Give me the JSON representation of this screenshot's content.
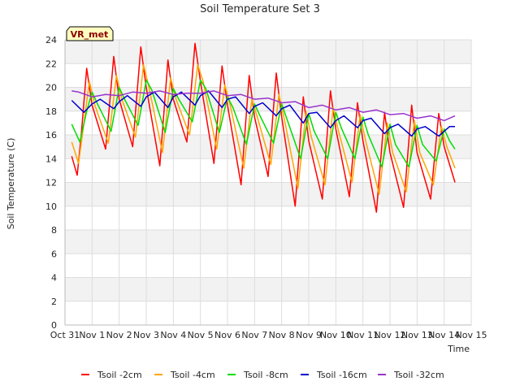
{
  "chart_data": {
    "type": "line",
    "title": "Soil Temperature Set 3",
    "xlabel": "Time",
    "ylabel": "Soil Temperature (C)",
    "xlim": [
      0,
      15
    ],
    "ylim": [
      0,
      24
    ],
    "x_tick_labels": [
      "Oct 31",
      "Nov 1",
      "Nov 2",
      "Nov 3",
      "Nov 4",
      "Nov 5",
      "Nov 6",
      "Nov 7",
      "Nov 8",
      "Nov 9",
      "Nov 10",
      "Nov 11",
      "Nov 12",
      "Nov 13",
      "Nov 14",
      "Nov 15"
    ],
    "y_ticks": [
      0,
      2,
      4,
      6,
      8,
      10,
      12,
      14,
      16,
      18,
      20,
      22,
      24
    ],
    "badge": "VR_met",
    "grid": true,
    "legend_position": "bottom",
    "series": [
      {
        "name": "Tsoil -2cm",
        "color": "#ff0000",
        "x": [
          0.25,
          0.45,
          0.6,
          0.8,
          1.0,
          1.5,
          1.8,
          2.0,
          2.5,
          2.8,
          3.0,
          3.5,
          3.8,
          4.0,
          4.5,
          4.8,
          5.0,
          5.5,
          5.8,
          6.0,
          6.5,
          6.8,
          7.0,
          7.5,
          7.8,
          8.0,
          8.5,
          8.8,
          9.0,
          9.5,
          9.8,
          10.0,
          10.5,
          10.8,
          11.0,
          11.5,
          11.8,
          12.0,
          12.5,
          12.8,
          13.0,
          13.5,
          13.8,
          14.0,
          14.4
        ],
        "y": [
          14.2,
          12.6,
          16.0,
          21.6,
          18.5,
          14.8,
          22.6,
          19.0,
          15.0,
          23.4,
          20.0,
          13.4,
          22.3,
          19.0,
          15.4,
          23.7,
          20.5,
          13.6,
          21.8,
          18.5,
          11.8,
          21.0,
          17.5,
          12.5,
          21.2,
          17.5,
          10.0,
          19.2,
          15.5,
          10.6,
          19.7,
          16.5,
          10.8,
          18.7,
          15.5,
          9.5,
          17.9,
          14.5,
          9.9,
          18.5,
          14.5,
          10.6,
          17.8,
          15.0,
          12.0
        ]
      },
      {
        "name": "Tsoil -4cm",
        "color": "#ffa500",
        "x": [
          0.25,
          0.5,
          0.7,
          0.9,
          1.1,
          1.6,
          1.9,
          2.1,
          2.6,
          2.9,
          3.1,
          3.6,
          3.9,
          4.1,
          4.6,
          4.9,
          5.1,
          5.6,
          5.9,
          6.1,
          6.6,
          6.9,
          7.1,
          7.6,
          7.9,
          8.1,
          8.6,
          8.9,
          9.1,
          9.6,
          9.9,
          10.1,
          10.6,
          10.9,
          11.1,
          11.6,
          11.9,
          12.1,
          12.6,
          12.9,
          13.1,
          13.6,
          13.9,
          14.1,
          14.4
        ],
        "y": [
          15.4,
          13.6,
          17.0,
          20.5,
          18.5,
          15.3,
          21.0,
          19.0,
          15.8,
          21.9,
          20.0,
          14.5,
          20.8,
          19.0,
          16.0,
          21.9,
          20.5,
          14.8,
          20.2,
          18.5,
          13.2,
          19.0,
          17.5,
          13.5,
          19.4,
          17.3,
          11.5,
          18.0,
          15.8,
          11.8,
          18.3,
          16.3,
          12.0,
          17.7,
          15.5,
          11.0,
          17.0,
          14.5,
          11.2,
          17.2,
          14.5,
          11.8,
          16.7,
          15.0,
          13.2
        ]
      },
      {
        "name": "Tsoil -8cm",
        "color": "#00dd00",
        "x": [
          0.25,
          0.55,
          0.8,
          1.0,
          1.2,
          1.7,
          2.0,
          2.2,
          2.7,
          3.0,
          3.2,
          3.7,
          4.0,
          4.2,
          4.7,
          5.0,
          5.2,
          5.7,
          6.0,
          6.2,
          6.7,
          7.0,
          7.2,
          7.7,
          8.0,
          8.2,
          8.7,
          9.0,
          9.2,
          9.7,
          10.0,
          10.2,
          10.7,
          11.0,
          11.2,
          11.7,
          12.0,
          12.2,
          12.7,
          13.0,
          13.2,
          13.7,
          14.0,
          14.2,
          14.4
        ],
        "y": [
          16.9,
          15.4,
          18.0,
          19.6,
          18.6,
          16.3,
          20.0,
          19.0,
          16.8,
          20.6,
          19.8,
          16.2,
          19.9,
          19.0,
          17.1,
          20.6,
          19.9,
          16.2,
          19.2,
          18.3,
          15.2,
          18.6,
          17.6,
          15.3,
          18.6,
          17.3,
          14.0,
          17.8,
          16.3,
          14.0,
          17.9,
          16.6,
          14.0,
          17.5,
          16.0,
          13.3,
          16.9,
          15.2,
          13.3,
          16.8,
          15.2,
          13.8,
          16.5,
          15.5,
          14.8
        ]
      },
      {
        "name": "Tsoil -16cm",
        "color": "#0000cc",
        "x": [
          0.25,
          0.7,
          1.0,
          1.3,
          1.8,
          2.0,
          2.3,
          2.8,
          3.0,
          3.3,
          3.8,
          4.0,
          4.3,
          4.8,
          5.0,
          5.3,
          5.8,
          6.0,
          6.3,
          6.8,
          7.0,
          7.3,
          7.8,
          8.0,
          8.3,
          8.8,
          9.0,
          9.3,
          9.8,
          10.0,
          10.3,
          10.8,
          11.0,
          11.3,
          11.8,
          12.0,
          12.3,
          12.8,
          13.0,
          13.3,
          13.8,
          14.0,
          14.2,
          14.4
        ],
        "y": [
          18.9,
          17.9,
          18.6,
          19.0,
          18.2,
          18.8,
          19.3,
          18.4,
          19.2,
          19.6,
          18.3,
          19.2,
          19.6,
          18.5,
          19.3,
          19.7,
          18.3,
          19.0,
          19.2,
          17.8,
          18.4,
          18.7,
          17.6,
          18.2,
          18.5,
          17.0,
          17.8,
          17.9,
          16.6,
          17.2,
          17.6,
          16.6,
          17.2,
          17.4,
          16.1,
          16.6,
          16.9,
          15.9,
          16.5,
          16.7,
          15.9,
          16.3,
          16.7,
          16.7
        ]
      },
      {
        "name": "Tsoil -32cm",
        "color": "#9933cc",
        "x": [
          0.25,
          0.5,
          1.0,
          1.5,
          2.0,
          2.5,
          3.0,
          3.5,
          4.0,
          4.5,
          5.0,
          5.5,
          6.0,
          6.5,
          7.0,
          7.5,
          8.0,
          8.5,
          9.0,
          9.5,
          10.0,
          10.5,
          11.0,
          11.5,
          12.0,
          12.5,
          13.0,
          13.5,
          14.0,
          14.4
        ],
        "y": [
          19.7,
          19.6,
          19.2,
          19.4,
          19.3,
          19.6,
          19.5,
          19.7,
          19.4,
          19.5,
          19.5,
          19.7,
          19.3,
          19.4,
          19.0,
          19.1,
          18.7,
          18.8,
          18.3,
          18.5,
          18.1,
          18.3,
          17.9,
          18.1,
          17.7,
          17.8,
          17.4,
          17.6,
          17.2,
          17.6
        ]
      }
    ]
  }
}
